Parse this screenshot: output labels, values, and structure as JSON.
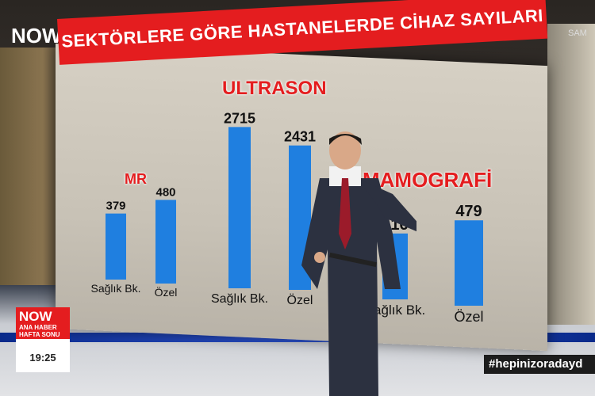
{
  "channel": {
    "logo": "NOW",
    "camera_text": "SAM"
  },
  "chart_data": {
    "type": "bar",
    "title": "SEKTÖRLERE GÖRE HASTANELERDE CİHAZ SAYILARI",
    "groups": [
      {
        "name": "MR",
        "categories": [
          "Sağlık Bk.",
          "Özel"
        ],
        "values": [
          379,
          480
        ]
      },
      {
        "name": "ULTRASON",
        "categories": [
          "Sağlık Bk.",
          "Özel"
        ],
        "values": [
          2715,
          2431
        ]
      },
      {
        "name": "MAMOGRAFİ",
        "categories": [
          "Sağlık Bk.",
          "Özel"
        ],
        "values": [
          416,
          479
        ]
      }
    ],
    "bar_color": "#1f7fe0",
    "title_color": "#e41d1f"
  },
  "lower_third": {
    "logo": "NOW",
    "show": "ANA HABER HAFTA SONU",
    "time": "19:25"
  },
  "hashtag": "#hepinizoradayd"
}
